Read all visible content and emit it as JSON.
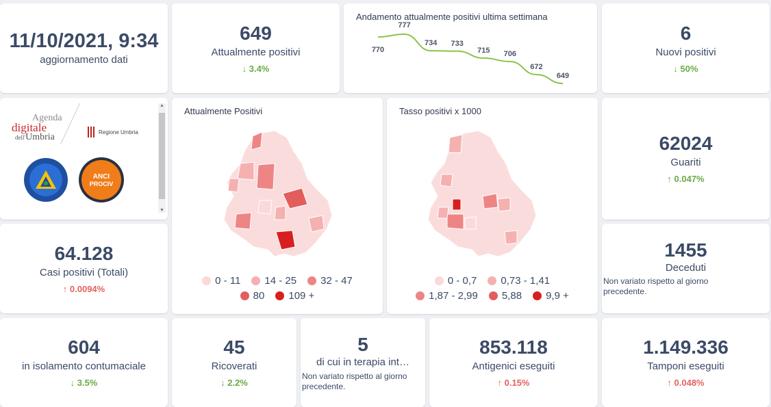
{
  "update": {
    "datetime": "11/10/2021, 9:34",
    "label": "aggiornamento dati"
  },
  "attualmente_positivi": {
    "value": "649",
    "label": "Attualmente positivi",
    "change": "3.4%",
    "direction": "down"
  },
  "trend": {
    "title": "Andamento attualmente positivi ultima settimana",
    "chart_data": {
      "type": "line",
      "title": "Andamento attualmente positivi ultima settimana",
      "values": [
        770,
        777,
        734,
        733,
        715,
        706,
        672,
        649
      ],
      "labels": [
        "770",
        "777",
        "734",
        "733",
        "715",
        "706",
        "672",
        "649"
      ],
      "color": "#8bc34a"
    }
  },
  "nuovi_positivi": {
    "value": "6",
    "label": "Nuovi positivi",
    "change": "50%",
    "direction": "down"
  },
  "logos": {
    "agenda": {
      "line1": "Agenda",
      "line2": "digitale",
      "line3a": "dell'",
      "line3b": "Umbria"
    },
    "regione": "Regione Umbria",
    "protezione": "Protezione Civile",
    "regione_small": "Regione Umbria",
    "anci": "ANCI",
    "prociv": "PROCIV"
  },
  "map1": {
    "title": "Attualmente Positivi",
    "legend": [
      {
        "label": "0 - 11",
        "color": "#fbd9d9"
      },
      {
        "label": "14 - 25",
        "color": "#f5b0b0"
      },
      {
        "label": "32 - 47",
        "color": "#ee8585"
      },
      {
        "label": "80",
        "color": "#e45d5d"
      },
      {
        "label": "109 +",
        "color": "#d81f1f"
      }
    ]
  },
  "map2": {
    "title": "Tasso positivi x 1000",
    "legend": [
      {
        "label": "0 - 0,7",
        "color": "#fbd9d9"
      },
      {
        "label": "0,73 - 1,41",
        "color": "#f5b0b0"
      },
      {
        "label": "1,87 - 2,99",
        "color": "#ee8585"
      },
      {
        "label": "5,88",
        "color": "#e45d5d"
      },
      {
        "label": "9,9 +",
        "color": "#d81f1f"
      }
    ]
  },
  "guariti": {
    "value": "62024",
    "label": "Guariti",
    "change": "0.047%",
    "direction": "up"
  },
  "casi_totali": {
    "value": "64.128",
    "label": "Casi positivi (Totali)",
    "change": "0.0094%",
    "direction": "up"
  },
  "deceduti": {
    "value": "1455",
    "label": "Deceduti",
    "note": "Non variato rispetto al giorno precedente."
  },
  "isolamento": {
    "value": "604",
    "label": "in isolamento contumaciale",
    "change": "3.5%",
    "direction": "down"
  },
  "ricoverati": {
    "value": "45",
    "label": "Ricoverati",
    "change": "2.2%",
    "direction": "down"
  },
  "terapia": {
    "value": "5",
    "label": "di cui in terapia int…",
    "note": "Non variato rispetto al giorno precedente."
  },
  "antigenici": {
    "value": "853.118",
    "label": "Antigenici eseguiti",
    "change": "0.15%",
    "direction": "up"
  },
  "tamponi": {
    "value": "1.149.336",
    "label": "Tamponi eseguiti",
    "change": "0.048%",
    "direction": "up"
  },
  "arrows": {
    "down": "↓",
    "up": "↑"
  }
}
